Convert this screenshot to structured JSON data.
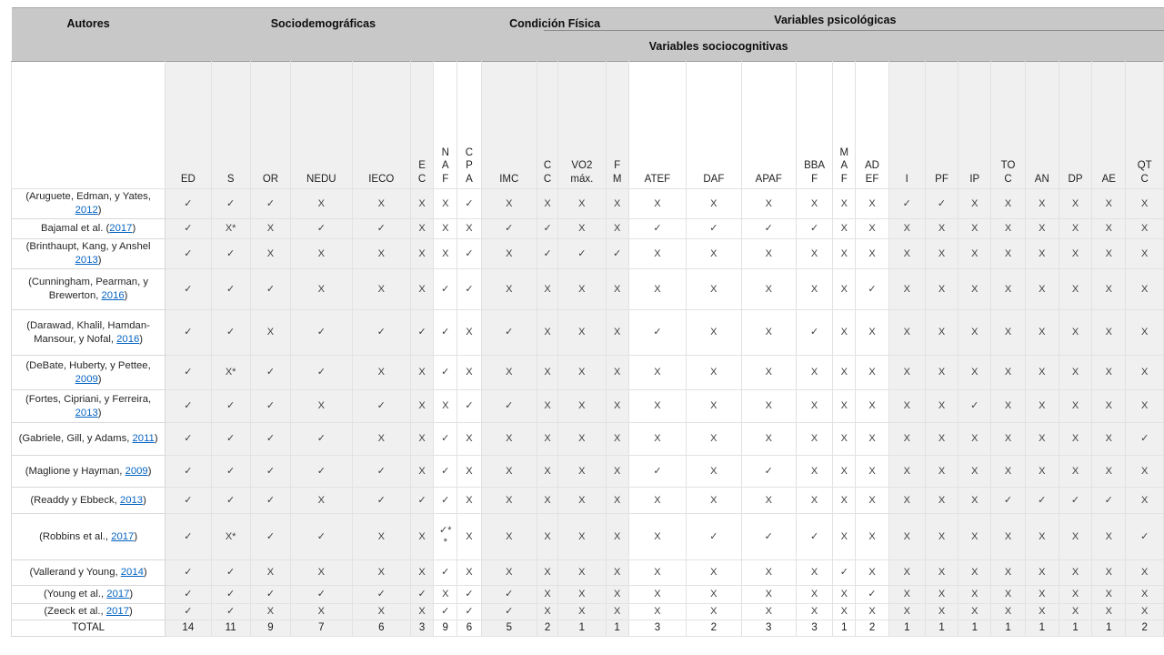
{
  "table": {
    "title_row": {
      "autores": "Autores",
      "sociodemograficas": "Sociodemográficas",
      "condicion_fisica": "Condición Física",
      "variables_psicologicas": "Variables psicológicas",
      "variables_sociocognitivas": "Variables sociocognitivas"
    },
    "columns": [
      {
        "id": "ED",
        "label": "ED"
      },
      {
        "id": "S",
        "label": "S"
      },
      {
        "id": "OR",
        "label": "OR"
      },
      {
        "id": "NEDU",
        "label": "NEDU"
      },
      {
        "id": "IECO",
        "label": "IECO"
      },
      {
        "id": "EC",
        "label": "E\nC"
      },
      {
        "id": "NAF",
        "label": "N\nA\nF"
      },
      {
        "id": "CPA",
        "label": "C\nP\nA"
      },
      {
        "id": "IMC",
        "label": "IMC"
      },
      {
        "id": "CC",
        "label": "C\nC"
      },
      {
        "id": "VO2",
        "label": "VO2\nmáx."
      },
      {
        "id": "FM",
        "label": "F\nM"
      },
      {
        "id": "ATEF",
        "label": "ATEF"
      },
      {
        "id": "DAF",
        "label": "DAF"
      },
      {
        "id": "APAF",
        "label": "APAF"
      },
      {
        "id": "BBAF",
        "label": "BBA\nF"
      },
      {
        "id": "MAF",
        "label": "M\nA\nF"
      },
      {
        "id": "ADEF",
        "label": "AD\nEF"
      },
      {
        "id": "I",
        "label": "I"
      },
      {
        "id": "PF",
        "label": "PF"
      },
      {
        "id": "IP",
        "label": "IP"
      },
      {
        "id": "TOC",
        "label": "TO\nC"
      },
      {
        "id": "AN",
        "label": "AN"
      },
      {
        "id": "DP",
        "label": "DP"
      },
      {
        "id": "AE",
        "label": "AE"
      },
      {
        "id": "QTC",
        "label": "QT\nC"
      }
    ],
    "rows": [
      {
        "author_prefix": "(Aruguete, Edman, y Yates, ",
        "year": "2012",
        "author_suffix": ")",
        "values": [
          "✓",
          "✓",
          "✓",
          "X",
          "X",
          "X",
          "X",
          "✓",
          "X",
          "X",
          "X",
          "X",
          "X",
          "X",
          "X",
          "X",
          "X",
          "X",
          "✓",
          "✓",
          "X",
          "X",
          "X",
          "X",
          "X",
          "X"
        ]
      },
      {
        "author_prefix": "Bajamal et al. (",
        "year": "2017",
        "author_suffix": ")",
        "values": [
          "✓",
          "X*",
          "X",
          "✓",
          "✓",
          "X",
          "X",
          "X",
          "✓",
          "✓",
          "X",
          "X",
          "✓",
          "✓",
          "✓",
          "✓",
          "X",
          "X",
          "X",
          "X",
          "X",
          "X",
          "X",
          "X",
          "X",
          "X"
        ]
      },
      {
        "author_prefix": "(Brinthaupt, Kang, y Anshel ",
        "year": "2013",
        "author_suffix": ")",
        "values": [
          "✓",
          "✓",
          "X",
          "X",
          "X",
          "X",
          "X",
          "✓",
          "X",
          "✓",
          "✓",
          "✓",
          "X",
          "X",
          "X",
          "X",
          "X",
          "X",
          "X",
          "X",
          "X",
          "X",
          "X",
          "X",
          "X",
          "X"
        ]
      },
      {
        "author_prefix": "(Cunningham, Pearman, y Brewerton, ",
        "year": "2016",
        "author_suffix": ")",
        "values": [
          "✓",
          "✓",
          "✓",
          "X",
          "X",
          "X",
          "✓",
          "✓",
          "X",
          "X",
          "X",
          "X",
          "X",
          "X",
          "X",
          "X",
          "X",
          "✓",
          "X",
          "X",
          "X",
          "X",
          "X",
          "X",
          "X",
          "X"
        ]
      },
      {
        "author_prefix": "(Darawad, Khalil, Hamdan-Mansour, y Nofal, ",
        "year": "2016",
        "author_suffix": ")",
        "values": [
          "✓",
          "✓",
          "X",
          "✓",
          "✓",
          "✓",
          "✓",
          "X",
          "✓",
          "X",
          "X",
          "X",
          "✓",
          "X",
          "X",
          "✓",
          "X",
          "X",
          "X",
          "X",
          "X",
          "X",
          "X",
          "X",
          "X",
          "X"
        ]
      },
      {
        "author_prefix": "(DeBate, Huberty, y Pettee, ",
        "year": "2009",
        "author_suffix": ")",
        "values": [
          "✓",
          "X*",
          "✓",
          "✓",
          "X",
          "X",
          "✓",
          "X",
          "X",
          "X",
          "X",
          "X",
          "X",
          "X",
          "X",
          "X",
          "X",
          "X",
          "X",
          "X",
          "X",
          "X",
          "X",
          "X",
          "X",
          "X"
        ]
      },
      {
        "author_prefix": "(Fortes, Cipriani, y Ferreira, ",
        "year": "2013",
        "author_suffix": ")",
        "values": [
          "✓",
          "✓",
          "✓",
          "X",
          "✓",
          "X",
          "X",
          "✓",
          "✓",
          "X",
          "X",
          "X",
          "X",
          "X",
          "X",
          "X",
          "X",
          "X",
          "X",
          "X",
          "✓",
          "X",
          "X",
          "X",
          "X",
          "X"
        ]
      },
      {
        "author_prefix": "(Gabriele, Gill, y Adams, ",
        "year": "2011",
        "author_suffix": ")",
        "values": [
          "✓",
          "✓",
          "✓",
          "✓",
          "X",
          "X",
          "✓",
          "X",
          "X",
          "X",
          "X",
          "X",
          "X",
          "X",
          "X",
          "X",
          "X",
          "X",
          "X",
          "X",
          "X",
          "X",
          "X",
          "X",
          "X",
          "✓"
        ]
      },
      {
        "author_prefix": "(Maglione y Hayman, ",
        "year": "2009",
        "author_suffix": ")",
        "values": [
          "✓",
          "✓",
          "✓",
          "✓",
          "✓",
          "X",
          "✓",
          "X",
          "X",
          "X",
          "X",
          "X",
          "✓",
          "X",
          "✓",
          "X",
          "X",
          "X",
          "X",
          "X",
          "X",
          "X",
          "X",
          "X",
          "X",
          "X"
        ]
      },
      {
        "author_prefix": "(Readdy y Ebbeck, ",
        "year": "2013",
        "author_suffix": ")",
        "values": [
          "✓",
          "✓",
          "✓",
          "X",
          "✓",
          "✓",
          "✓",
          "X",
          "X",
          "X",
          "X",
          "X",
          "X",
          "X",
          "X",
          "X",
          "X",
          "X",
          "X",
          "X",
          "X",
          "✓",
          "✓",
          "✓",
          "✓",
          "X"
        ]
      },
      {
        "author_prefix": "(Robbins et al., ",
        "year": "2017",
        "author_suffix": ")",
        "values": [
          "✓",
          "X*",
          "✓",
          "✓",
          "X",
          "X",
          "✓*\n*",
          "X",
          "X",
          "X",
          "X",
          "X",
          "X",
          "✓",
          "✓",
          "✓",
          "X",
          "X",
          "X",
          "X",
          "X",
          "X",
          "X",
          "X",
          "X",
          "✓"
        ]
      },
      {
        "author_prefix": "(Vallerand y Young, ",
        "year": "2014",
        "author_suffix": ")",
        "values": [
          "✓",
          "✓",
          "X",
          "X",
          "X",
          "X",
          "✓",
          "X",
          "X",
          "X",
          "X",
          "X",
          "X",
          "X",
          "X",
          "X",
          "✓",
          "X",
          "X",
          "X",
          "X",
          "X",
          "X",
          "X",
          "X",
          "X"
        ]
      },
      {
        "author_prefix": "(Young et al., ",
        "year": "2017",
        "author_suffix": ")",
        "values": [
          "✓",
          "✓",
          "✓",
          "✓",
          "✓",
          "✓",
          "X",
          "✓",
          "✓",
          "X",
          "X",
          "X",
          "X",
          "X",
          "X",
          "X",
          "X",
          "✓",
          "X",
          "X",
          "X",
          "X",
          "X",
          "X",
          "X",
          "X"
        ]
      },
      {
        "author_prefix": "(Zeeck et al., ",
        "year": "2017",
        "author_suffix": ")",
        "values": [
          "✓",
          "✓",
          "X",
          "X",
          "X",
          "X",
          "✓",
          "✓",
          "✓",
          "X",
          "X",
          "X",
          "X",
          "X",
          "X",
          "X",
          "X",
          "X",
          "X",
          "X",
          "X",
          "X",
          "X",
          "X",
          "X",
          "X"
        ]
      }
    ],
    "total_row": {
      "label": "TOTAL",
      "values": [
        "14",
        "11",
        "9",
        "7",
        "6",
        "3",
        "9",
        "6",
        "5",
        "2",
        "1",
        "1",
        "3",
        "2",
        "3",
        "3",
        "1",
        "2",
        "1",
        "1",
        "1",
        "1",
        "1",
        "1",
        "1",
        "2"
      ]
    },
    "colors": {
      "header_bg": "#c8c8c8",
      "shaded_column_bg": "#f0f0f0",
      "link": "#0563c1",
      "mark_text": "#3f3f3f"
    }
  }
}
